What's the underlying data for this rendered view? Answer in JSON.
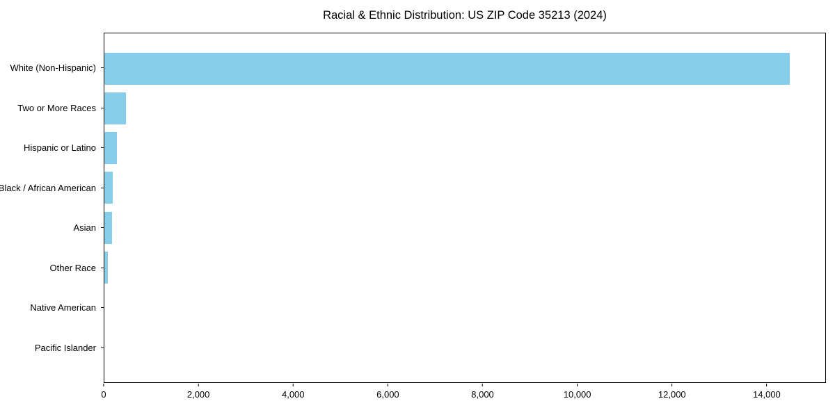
{
  "chart_data": {
    "type": "bar",
    "orientation": "horizontal",
    "title": "Racial & Ethnic Distribution: US ZIP Code 35213 (2024)",
    "categories": [
      "White (Non-Hispanic)",
      "Two or More Races",
      "Hispanic or Latino",
      "Black / African American",
      "Asian",
      "Other Race",
      "Native American",
      "Pacific Islander"
    ],
    "values": [
      14500,
      450,
      270,
      175,
      160,
      80,
      0,
      0
    ],
    "xlabel": "",
    "ylabel": "",
    "xlim": [
      0,
      15250
    ],
    "x_ticks": [
      {
        "value": 0,
        "label": "0"
      },
      {
        "value": 2000,
        "label": "2,000"
      },
      {
        "value": 4000,
        "label": "4,000"
      },
      {
        "value": 6000,
        "label": "6,000"
      },
      {
        "value": 8000,
        "label": "8,000"
      },
      {
        "value": 10000,
        "label": "10,000"
      },
      {
        "value": 12000,
        "label": "12,000"
      },
      {
        "value": 14000,
        "label": "14,000"
      }
    ],
    "bar_color": "#87CEEB",
    "spine_color": "#000000",
    "text_color": "#000000",
    "background_color": "#ffffff",
    "grid": false,
    "legend": null
  }
}
